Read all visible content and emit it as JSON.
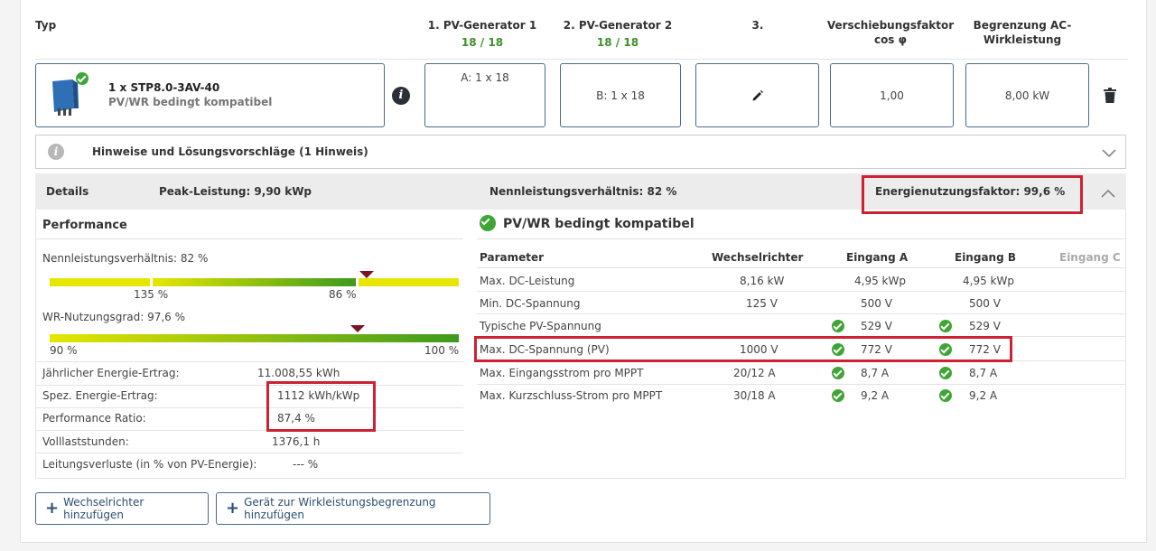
{
  "header": {
    "typ": "Typ",
    "pv1": "1. PV-Generator 1",
    "pv1_count": "18 / 18",
    "pv2": "2. PV-Generator 2",
    "pv2_count": "18 / 18",
    "col3": "3.",
    "cosphi_l1": "Verschiebungsfaktor",
    "cosphi_l2": "cos φ",
    "ac_l1": "Begrenzung AC-",
    "ac_l2": "Wirkleistung"
  },
  "inverter": {
    "name": "1 x STP8.0-3AV-40",
    "compat": "PV/WR bedingt kompatibel",
    "gen_a": "A: 1 x 18",
    "gen_b": "B: 1 x 18",
    "cosphi": "1,00",
    "ac_limit": "8,00 kW"
  },
  "hints": {
    "label": "Hinweise und Lösungsvorschläge (1 Hinweis)"
  },
  "details": {
    "label": "Details",
    "peak": "Peak-Leistung: 9,90 kWp",
    "ratio": "Nennleistungsverhältnis: 82 %",
    "energy_factor": "Energienutzungsfaktor: 99,6 %"
  },
  "performance": {
    "title": "Performance",
    "ratio_label": "Nennleistungsverhältnis: 82 %",
    "bar1_left": "135 %",
    "bar1_right": "86 %",
    "nutzungsgrad_label": "WR-Nutzungsgrad: 97,6 %",
    "bar2_left": "90 %",
    "bar2_right": "100 %",
    "bar1_marker_fraction": 0.82,
    "bar2_marker_fraction": 0.976,
    "rows": [
      {
        "label": "Jährlicher Energie-Ertrag:",
        "value": "11.008,55 kWh"
      },
      {
        "label": "Spez. Energie-Ertrag:",
        "value": "1112 kWh/kWp"
      },
      {
        "label": "Performance Ratio:",
        "value": "87,4 %"
      },
      {
        "label": "Volllaststunden:",
        "value": "1376,1 h"
      },
      {
        "label": "Leitungsverluste (in % von PV-Energie):",
        "value": "--- %"
      }
    ]
  },
  "compat": {
    "title": "PV/WR bedingt kompatibel",
    "cols": [
      "Parameter",
      "Wechselrichter",
      "Eingang A",
      "Eingang B",
      "Eingang C"
    ],
    "rows": [
      {
        "p": "Max. DC-Leistung",
        "w": "8,16 kW",
        "a": "4,95 kWp",
        "b": "4,95 kWp",
        "check": false
      },
      {
        "p": "Min. DC-Spannung",
        "w": "125 V",
        "a": "500 V",
        "b": "500 V",
        "check": false
      },
      {
        "p": "Typische PV-Spannung",
        "w": "",
        "a": "529 V",
        "b": "529 V",
        "check": true
      },
      {
        "p": "Max. DC-Spannung (PV)",
        "w": "1000 V",
        "a": "772 V",
        "b": "772 V",
        "check": true
      },
      {
        "p": "Max. Eingangsstrom pro MPPT",
        "w": "20/12 A",
        "a": "8,7 A",
        "b": "8,7 A",
        "check": true
      },
      {
        "p": "Max. Kurzschluss-Strom pro MPPT",
        "w": "30/18 A",
        "a": "9,2 A",
        "b": "9,2 A",
        "check": true
      }
    ]
  },
  "buttons": {
    "add_inverter": "Wechselrichter hinzufügen",
    "add_device": "Gerät zur Wirkleistungsbegrenzung hinzufügen"
  },
  "colors": {
    "accent": "#2b4f72",
    "ok": "#3fa535",
    "highlight": "#cc2233"
  }
}
